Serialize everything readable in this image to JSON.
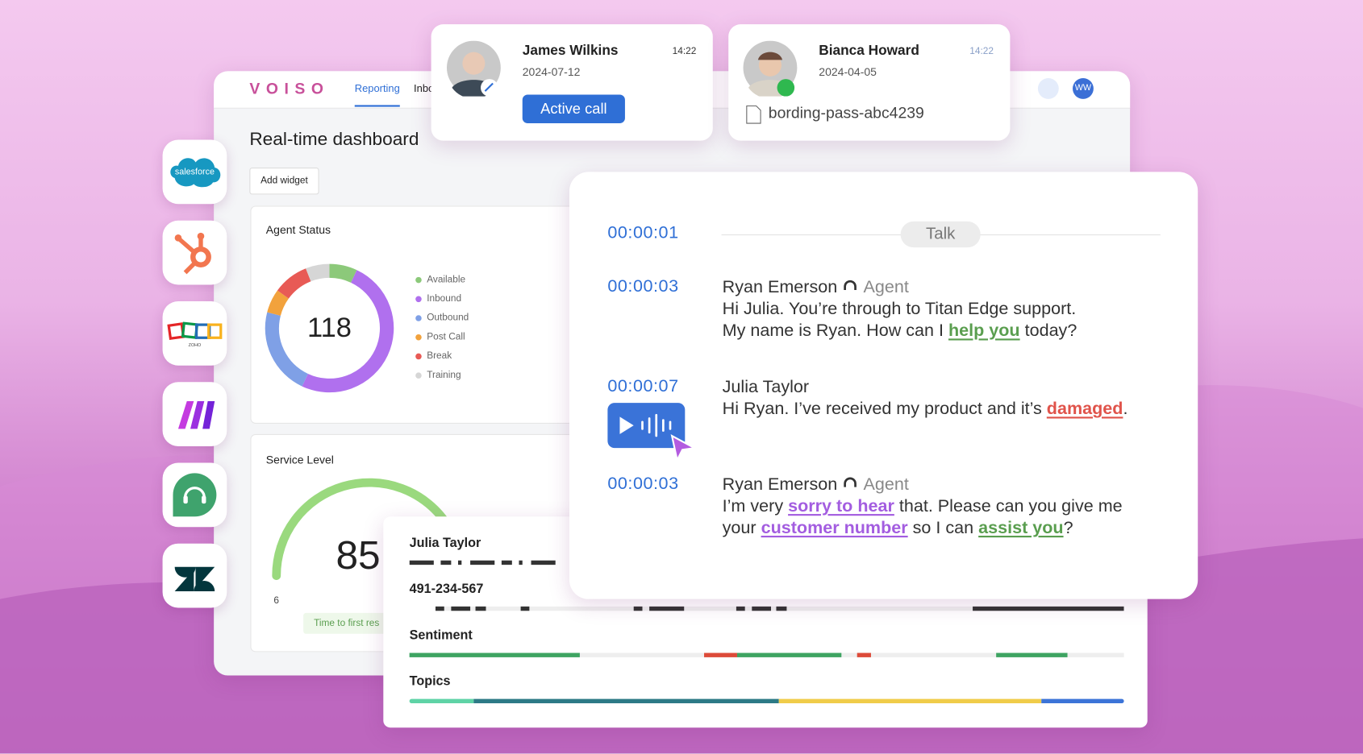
{
  "dashboard": {
    "logo": "VOISO",
    "tabs": [
      "Reporting",
      "Inbo"
    ],
    "title": "Real-time dashboard",
    "add_widget": "Add widget",
    "avatar": "WW",
    "agent_status": {
      "title": "Agent Status",
      "total": 118,
      "legend": [
        {
          "label": "Available",
          "color": "#8cc97a",
          "share": 7
        },
        {
          "label": "Inbound",
          "color": "#b070ee",
          "share": 50
        },
        {
          "label": "Outbound",
          "color": "#7fa0e6",
          "share": 22
        },
        {
          "label": "Post Call",
          "color": "#f2a23c",
          "share": 6
        },
        {
          "label": "Break",
          "color": "#e85a55",
          "share": 9
        },
        {
          "label": "Training",
          "color": "#d6d6d6",
          "share": 6
        }
      ]
    },
    "service_level": {
      "title": "Service Level",
      "value": 85,
      "min_label": "6",
      "caption": "Time to first res"
    }
  },
  "calls": [
    {
      "name": "James Wilkins",
      "date": "2024-07-12",
      "time": "14:22",
      "button": "Active call"
    },
    {
      "name": "Bianca Howard",
      "date": "2024-04-05",
      "time": "14:22",
      "attachment": "bording-pass-abc4239"
    }
  ],
  "integrations": {
    "salesforce": "salesforce",
    "zoho": "ZOHO"
  },
  "transcript": {
    "talk_time": "00:00:01",
    "talk_label": "Talk",
    "messages": [
      {
        "time": "00:00:03",
        "speaker": "Ryan Emerson",
        "role": "Agent",
        "lines": [
          [
            {
              "text": "Hi Julia. You’re through to Titan Edge support."
            }
          ],
          [
            {
              "text": "My name is Ryan. How can I "
            },
            {
              "text": "help you",
              "highlight": "green"
            },
            {
              "text": " today?"
            }
          ]
        ]
      },
      {
        "time": "00:00:07",
        "speaker": "Julia Taylor",
        "lines": [
          [
            {
              "text": "Hi Ryan. I’ve received my product and it’s "
            },
            {
              "text": "damaged",
              "highlight": "red"
            },
            {
              "text": "."
            }
          ]
        ]
      },
      {
        "time": "00:00:03",
        "speaker": "Ryan Emerson",
        "role": "Agent",
        "lines": [
          [
            {
              "text": "I’m very "
            },
            {
              "text": "sorry to hear",
              "highlight": "purple"
            },
            {
              "text": " that. Please can you give me"
            }
          ],
          [
            {
              "text": "your "
            },
            {
              "text": "customer number",
              "highlight": "purple"
            },
            {
              "text": " so I can "
            },
            {
              "text": "assist you",
              "highlight": "green"
            },
            {
              "text": "?"
            }
          ]
        ]
      }
    ]
  },
  "analysis": {
    "name": "Julia Taylor",
    "phone": "491-234-567",
    "sentiment": "Sentiment",
    "topics": "Topics"
  }
}
